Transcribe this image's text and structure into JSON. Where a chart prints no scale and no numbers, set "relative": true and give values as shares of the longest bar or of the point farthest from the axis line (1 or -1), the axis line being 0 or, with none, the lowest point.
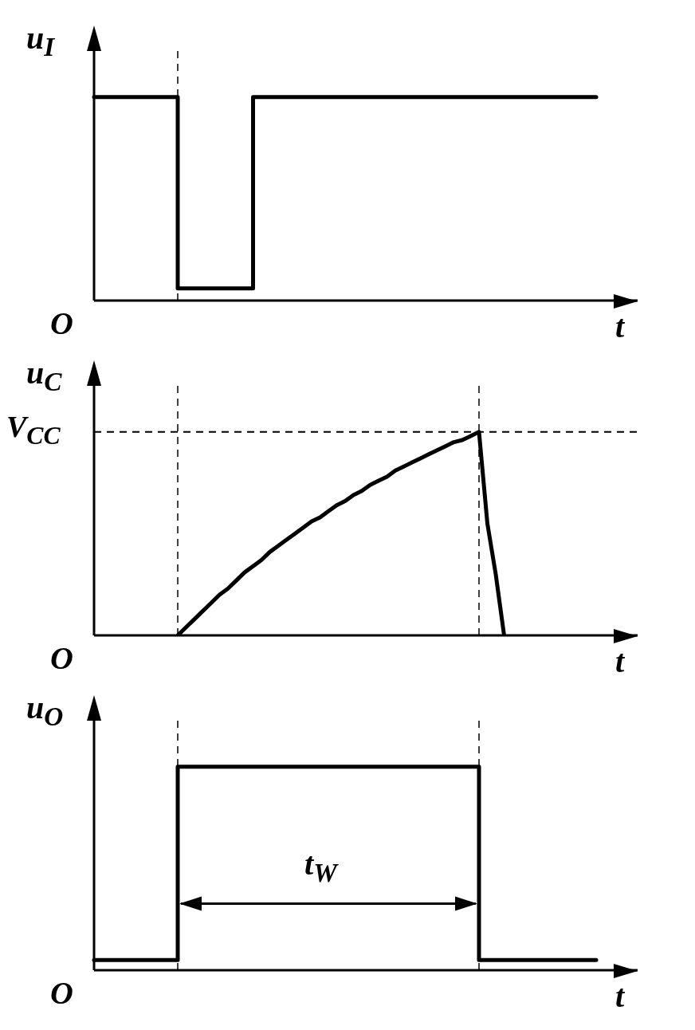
{
  "chart_data": [
    {
      "type": "step",
      "relative": true,
      "ylabel": "u$_{I}$",
      "xlabel": "t",
      "annotations": [
        "O"
      ],
      "categories": [
        null,
        null,
        null,
        null,
        null,
        null,
        null,
        null,
        null,
        null,
        null,
        null,
        null,
        null,
        null,
        null,
        null,
        null,
        null,
        null,
        null,
        null,
        null,
        null,
        null,
        null,
        null,
        null,
        null,
        null,
        null,
        null,
        null,
        null,
        null,
        null,
        null,
        null,
        null,
        null,
        null,
        null,
        null,
        null,
        null,
        null,
        null,
        null,
        null,
        null,
        null,
        null,
        null,
        null,
        null,
        null,
        null,
        null,
        null,
        null,
        null
      ],
      "series": [
        {
          "color": "#000000",
          "values": [
            1,
            1,
            1,
            1,
            1,
            1,
            1,
            1,
            1,
            1,
            0.06,
            0.06,
            0.06,
            0.06,
            0.06,
            0.06,
            0.06,
            0.06,
            0.06,
            1,
            1,
            1,
            1,
            1,
            1,
            1,
            1,
            1,
            1,
            1,
            1,
            1,
            1,
            1,
            1,
            1,
            1,
            1,
            1,
            1,
            1,
            1,
            1,
            1,
            1,
            1,
            1,
            1,
            1,
            1,
            1,
            1,
            1,
            1,
            1,
            1,
            1,
            1,
            1,
            1,
            1
          ]
        }
      ]
    },
    {
      "type": "line",
      "relative": true,
      "ylabel": "u$_{C}$",
      "xlabel": "t",
      "annotations": [
        "O"
      ],
      "categories": [
        null,
        null,
        null,
        null,
        null,
        null,
        null,
        null,
        null,
        null,
        null,
        null,
        null,
        null,
        null,
        null,
        null,
        null,
        null,
        null,
        null,
        null,
        null,
        null,
        null,
        null,
        null,
        null,
        null,
        null,
        null,
        null,
        null,
        null,
        null,
        null,
        null,
        null,
        null,
        null,
        null,
        null,
        null,
        null,
        null,
        null,
        null,
        null,
        null,
        null,
        null,
        null,
        null,
        null,
        null,
        null,
        null,
        null,
        null,
        null,
        null
      ],
      "series": [
        {
          "color": "#000000",
          "values": [
            null,
            null,
            null,
            null,
            null,
            null,
            null,
            null,
            null,
            null,
            0,
            0.04,
            0.08,
            0.12,
            0.16,
            0.2,
            0.23,
            0.27,
            0.31,
            0.34,
            0.37,
            0.41,
            0.44,
            0.47,
            0.5,
            0.53,
            0.56,
            0.58,
            0.61,
            0.64,
            0.66,
            0.69,
            0.71,
            0.74,
            0.76,
            0.78,
            0.81,
            0.83,
            0.85,
            0.87,
            0.89,
            0.91,
            0.93,
            0.95,
            0.96,
            0.98,
            1,
            0.55,
            0.3,
            0,
            null,
            null,
            null,
            null,
            null,
            null,
            null,
            null,
            null,
            null,
            null
          ]
        }
      ],
      "ref_lines": [
        {
          "axis": "y",
          "value": 1,
          "label": "V$_{CC}$",
          "line_style": "dashed"
        }
      ]
    },
    {
      "type": "step",
      "relative": true,
      "ylabel": "u$_{O}$",
      "xlabel": "t",
      "annotations": [
        "O",
        "t$_{W}$"
      ],
      "categories": [
        null,
        null,
        null,
        null,
        null,
        null,
        null,
        null,
        null,
        null,
        null,
        null,
        null,
        null,
        null,
        null,
        null,
        null,
        null,
        null,
        null,
        null,
        null,
        null,
        null,
        null,
        null,
        null,
        null,
        null,
        null,
        null,
        null,
        null,
        null,
        null,
        null,
        null,
        null,
        null,
        null,
        null,
        null,
        null,
        null,
        null,
        null,
        null,
        null,
        null,
        null,
        null,
        null,
        null,
        null,
        null,
        null,
        null,
        null,
        null,
        null
      ],
      "series": [
        {
          "color": "#000000",
          "values": [
            0.05,
            0.05,
            0.05,
            0.05,
            0.05,
            0.05,
            0.05,
            0.05,
            0.05,
            0.05,
            1,
            1,
            1,
            1,
            1,
            1,
            1,
            1,
            1,
            1,
            1,
            1,
            1,
            1,
            1,
            1,
            1,
            1,
            1,
            1,
            1,
            1,
            1,
            1,
            1,
            1,
            1,
            1,
            1,
            1,
            1,
            1,
            1,
            1,
            1,
            1,
            0.05,
            0.05,
            0.05,
            0.05,
            0.05,
            0.05,
            0.05,
            0.05,
            0.05,
            0.05,
            0.05,
            0.05,
            0.05,
            0.05,
            0.05
          ]
        }
      ]
    }
  ]
}
